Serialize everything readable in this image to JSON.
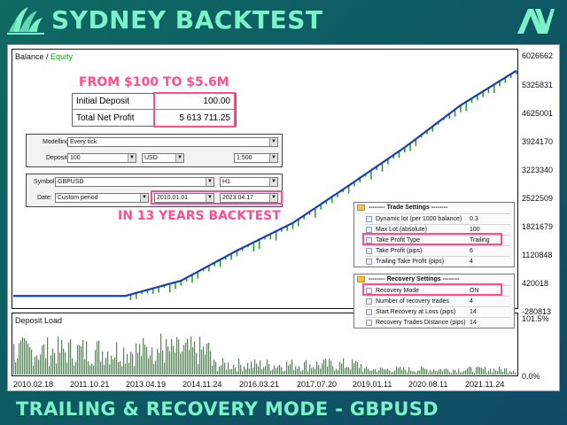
{
  "header": {
    "title": "SYDNEY BACKTEST",
    "logo_left_icon": "opera-house-icon",
    "logo_right_icon": "av-monogram-icon",
    "logo_right_text": "AV"
  },
  "chart": {
    "legend_balance": "Balance",
    "legend_sep": " / ",
    "legend_equity": "Equity",
    "load_label": "Deposit Load",
    "y_ticks": [
      "6026662",
      "5325831",
      "4625001",
      "3924170",
      "3223340",
      "2522509",
      "1821679",
      "1120848",
      "420018",
      "-280813"
    ],
    "load_ticks": [
      "101.5%",
      "0.0%"
    ],
    "x_ticks": [
      "2010.02.18",
      "2011.10.21",
      "2013.04.19",
      "2014.11.24",
      "2016.03.21",
      "2017.07.20",
      "2019.01.11",
      "2020.08.11",
      "2021.11.24"
    ],
    "colors": {
      "balance": "#1a3fb0",
      "equity": "#1e9c1e",
      "load": "#22aa22",
      "highlight": "#ff4d8d"
    }
  },
  "chart_data": {
    "type": "line",
    "series": [
      {
        "name": "Balance",
        "x": [
          "2010.02.18",
          "2011.10.21",
          "2013.04.19",
          "2014.11.24",
          "2016.03.21",
          "2017.07.20",
          "2019.01.11",
          "2020.08.11",
          "2021.11.24",
          "2023.04.17"
        ],
        "values": [
          100,
          100,
          100,
          380000,
          1130000,
          1820000,
          2750000,
          3700000,
          4750000,
          5613811
        ]
      }
    ],
    "ylim": [
      -280813,
      6026662
    ],
    "grid": false
  },
  "overlay": {
    "from_title": "FROM $100 TO $5.6M",
    "years_title": "IN 13 YEARS BACKTEST",
    "initial_deposit_label": "Initial Deposit",
    "initial_deposit_value": "100.00",
    "net_profit_label": "Total Net Profit",
    "net_profit_value": "5 613 711.25"
  },
  "test_settings": {
    "modelling_label": "Modelling:",
    "modelling_value": "Every tick",
    "deposit_label": "Deposit:",
    "deposit_value": "100",
    "currency_value": "USD",
    "leverage_value": "1:500",
    "symbol_label": "Symbol:",
    "symbol_value": "GBPUSD",
    "timeframe_value": "H1",
    "date_label": "Date:",
    "date_mode_value": "Custom period",
    "date_from": "2010.01.01",
    "date_to": "2023.04.17"
  },
  "trade_settings": {
    "title": "-------- Trade Settings --------",
    "rows": [
      {
        "name": "Dynamic lot (per 1000 balance)",
        "value": "0.3"
      },
      {
        "name": "Max Lot (absolute)",
        "value": "100"
      },
      {
        "name": "Take Profit Type",
        "value": "Trailing"
      },
      {
        "name": "Take Profit (pips)",
        "value": "6"
      },
      {
        "name": "Trailing Take Profit (pips)",
        "value": "4"
      }
    ]
  },
  "recovery_settings": {
    "title": "-------- Recovery Settings --------",
    "rows": [
      {
        "name": "Recovery Mode",
        "value": "ON"
      },
      {
        "name": "Number of recovery trades",
        "value": "4"
      },
      {
        "name": "Start Recovery at Loss (pips)",
        "value": "14"
      },
      {
        "name": "Recovery Trades Distance (pips)",
        "value": "14"
      }
    ]
  },
  "footer": {
    "text": "TRAILING & RECOVERY MODE - GBPUSD"
  }
}
